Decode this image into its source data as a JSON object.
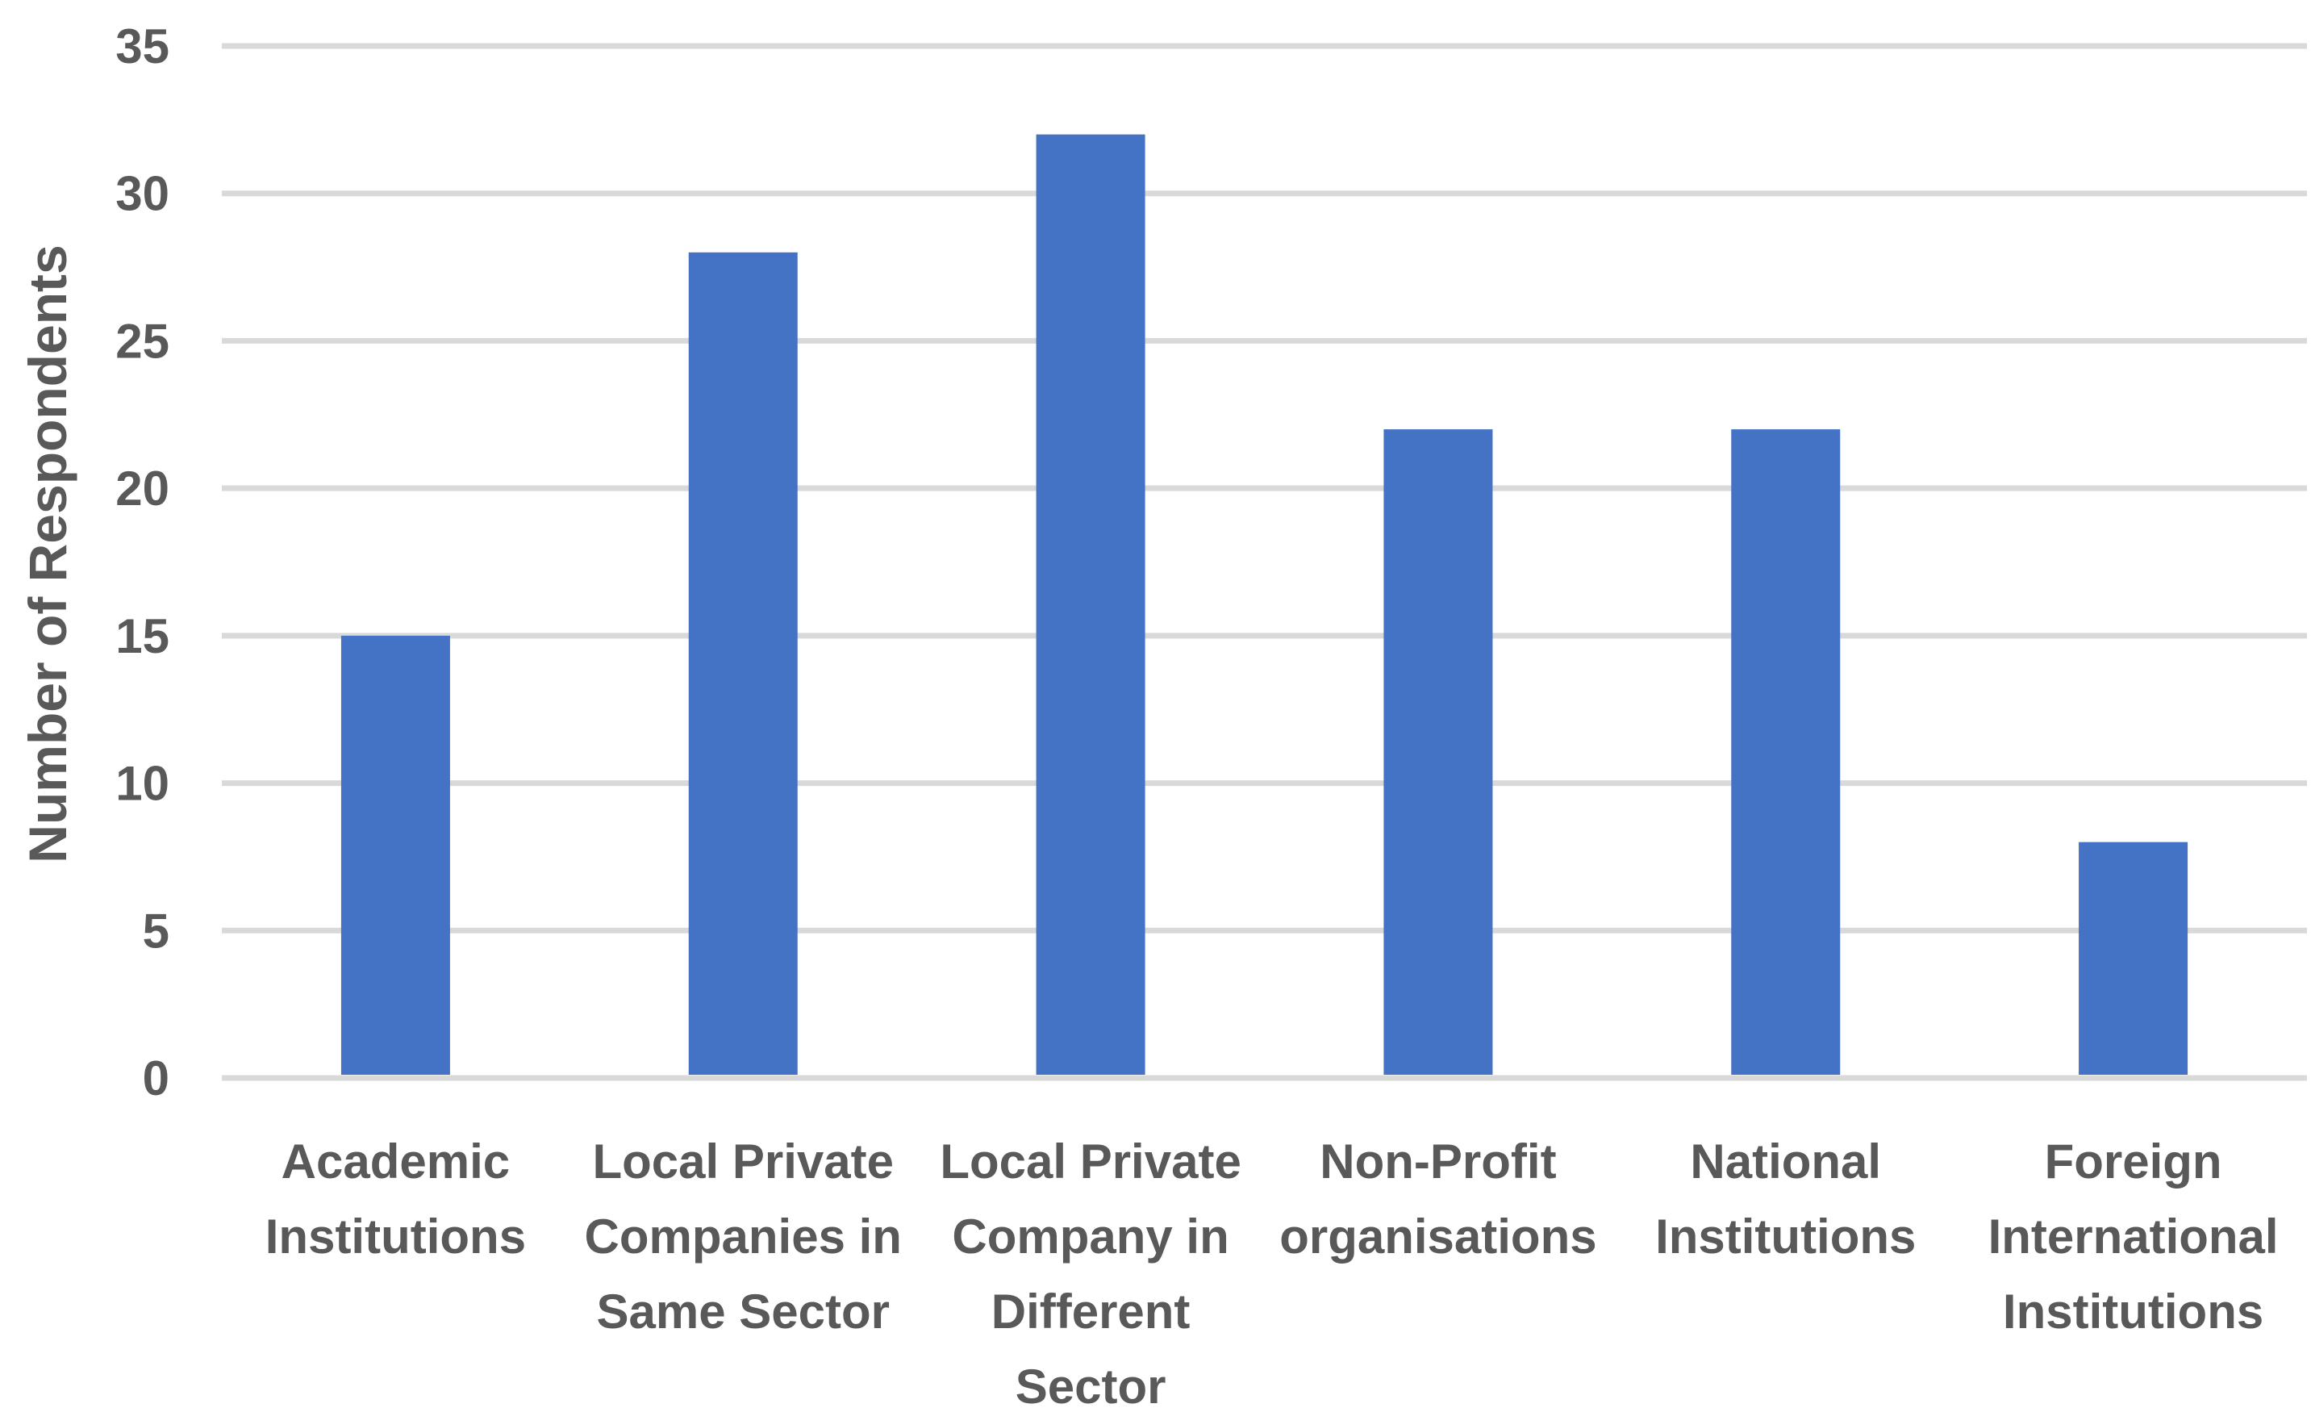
{
  "chart_data": {
    "type": "bar",
    "categories": [
      [
        "Academic",
        "Institutions"
      ],
      [
        "Local Private",
        "Companies in",
        "Same Sector"
      ],
      [
        "Local Private",
        "Company in",
        "Different",
        "Sector"
      ],
      [
        "Non-Profit",
        "organisations"
      ],
      [
        "National",
        "Institutions"
      ],
      [
        "Foreign",
        "International",
        "Institutions"
      ]
    ],
    "values": [
      15,
      28,
      32,
      22,
      22,
      8
    ],
    "ylabel": "Number of Respondents",
    "xlabel": "",
    "ylim": [
      0,
      35
    ],
    "yticks": [
      0,
      5,
      10,
      15,
      20,
      25,
      30,
      35
    ],
    "grid": true,
    "legend": "none",
    "bar_color": "#4472c4",
    "grid_color": "#d9d9d9",
    "text_color": "#595959"
  }
}
